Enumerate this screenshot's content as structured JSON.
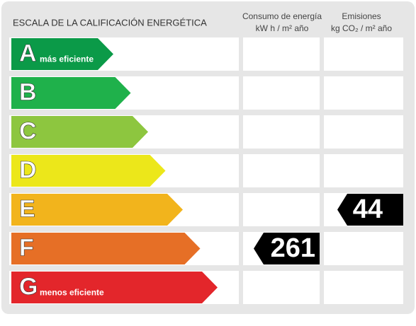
{
  "header": {
    "title": "ESCALA DE LA CALIFICACIÓN ENERGÉTICA",
    "consumption": {
      "line1": "Consumo de energía",
      "line2": "kW h  / m² año"
    },
    "emissions": {
      "line1": "Emisiones",
      "line2": "kg CO₂  / m² año"
    }
  },
  "rows": [
    {
      "letter": "A",
      "note": "más eficiente",
      "color": "#0b9a48"
    },
    {
      "letter": "B",
      "color": "#1fb14b"
    },
    {
      "letter": "C",
      "color": "#8dc63f"
    },
    {
      "letter": "D",
      "color": "#ece71a"
    },
    {
      "letter": "E",
      "color": "#f2b41c",
      "emissions": 44
    },
    {
      "letter": "F",
      "color": "#e66f26",
      "consumption": 261
    },
    {
      "letter": "G",
      "note": "menos eficiente",
      "color": "#e3262b"
    }
  ]
}
